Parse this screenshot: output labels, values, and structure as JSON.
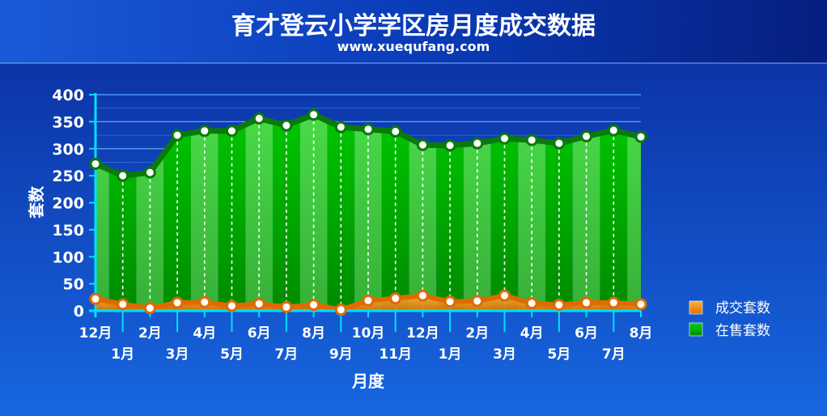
{
  "chart_data": {
    "type": "area",
    "title": "育才登云小学学区房月度成交数据",
    "subtitle": "www.xuequfang.com",
    "xlabel": "月度",
    "ylabel": "套数",
    "ylim": [
      0,
      400
    ],
    "y_ticks": [
      "0",
      "50",
      "100",
      "150",
      "200",
      "250",
      "300",
      "350",
      "400"
    ],
    "categories": [
      "12月",
      "1月",
      "2月",
      "3月",
      "4月",
      "5月",
      "6月",
      "7月",
      "8月",
      "9月",
      "10月",
      "11月",
      "12月",
      "1月",
      "2月",
      "3月",
      "4月",
      "5月",
      "6月",
      "7月",
      "8月"
    ],
    "series": [
      {
        "name": "成交套数",
        "color": "#ff8c00",
        "values": [
          22,
          12,
          5,
          15,
          16,
          9,
          13,
          7,
          11,
          2,
          19,
          23,
          28,
          17,
          18,
          28,
          14,
          11,
          15,
          15,
          12
        ]
      },
      {
        "name": "在售套数",
        "color": "#00a000",
        "values": [
          272,
          250,
          256,
          325,
          333,
          333,
          356,
          343,
          363,
          340,
          336,
          332,
          307,
          306,
          310,
          319,
          316,
          310,
          323,
          334,
          322
        ]
      }
    ],
    "legend_position": "right",
    "grid": "horizontal"
  }
}
